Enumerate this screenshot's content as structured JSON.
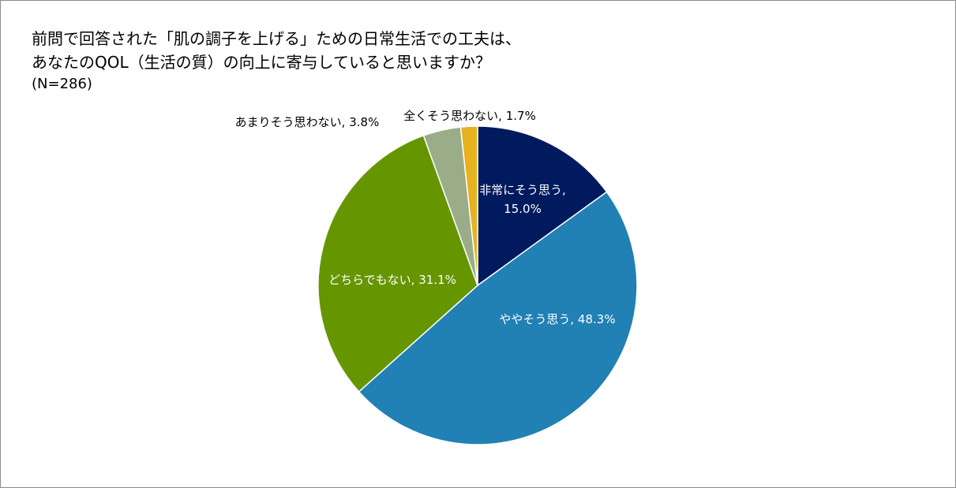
{
  "chart_data": {
    "type": "pie",
    "title_lines": [
      "前問で回答された「肌の調子を上げる」ための日常生活での工夫は、",
      "あなたのQOL（生活の質）の向上に寄与していると思いますか？"
    ],
    "subtitle": "(N=286)",
    "slices": [
      {
        "label": "非常にそう思う",
        "value": 15.0,
        "display": "15.0%",
        "color": "#001a5e",
        "label_color": "#ffffff",
        "label_placement": "inside"
      },
      {
        "label": "ややそう思う",
        "value": 48.3,
        "display": "48.3%",
        "color": "#2180b4",
        "label_color": "#ffffff",
        "label_placement": "inside"
      },
      {
        "label": "どちらでもない",
        "value": 31.1,
        "display": "31.1%",
        "color": "#659600",
        "label_color": "#ffffff",
        "label_placement": "inside"
      },
      {
        "label": "あまりそう思わない",
        "value": 3.8,
        "display": "3.8%",
        "color": "#9bad88",
        "label_color": "#000000",
        "label_placement": "outside"
      },
      {
        "label": "全くそう思わない",
        "value": 1.7,
        "display": "1.7%",
        "color": "#e6b220",
        "label_color": "#000000",
        "label_placement": "outside"
      }
    ],
    "start_angle": "12 o'clock",
    "direction": "clockwise",
    "legend": "none"
  }
}
